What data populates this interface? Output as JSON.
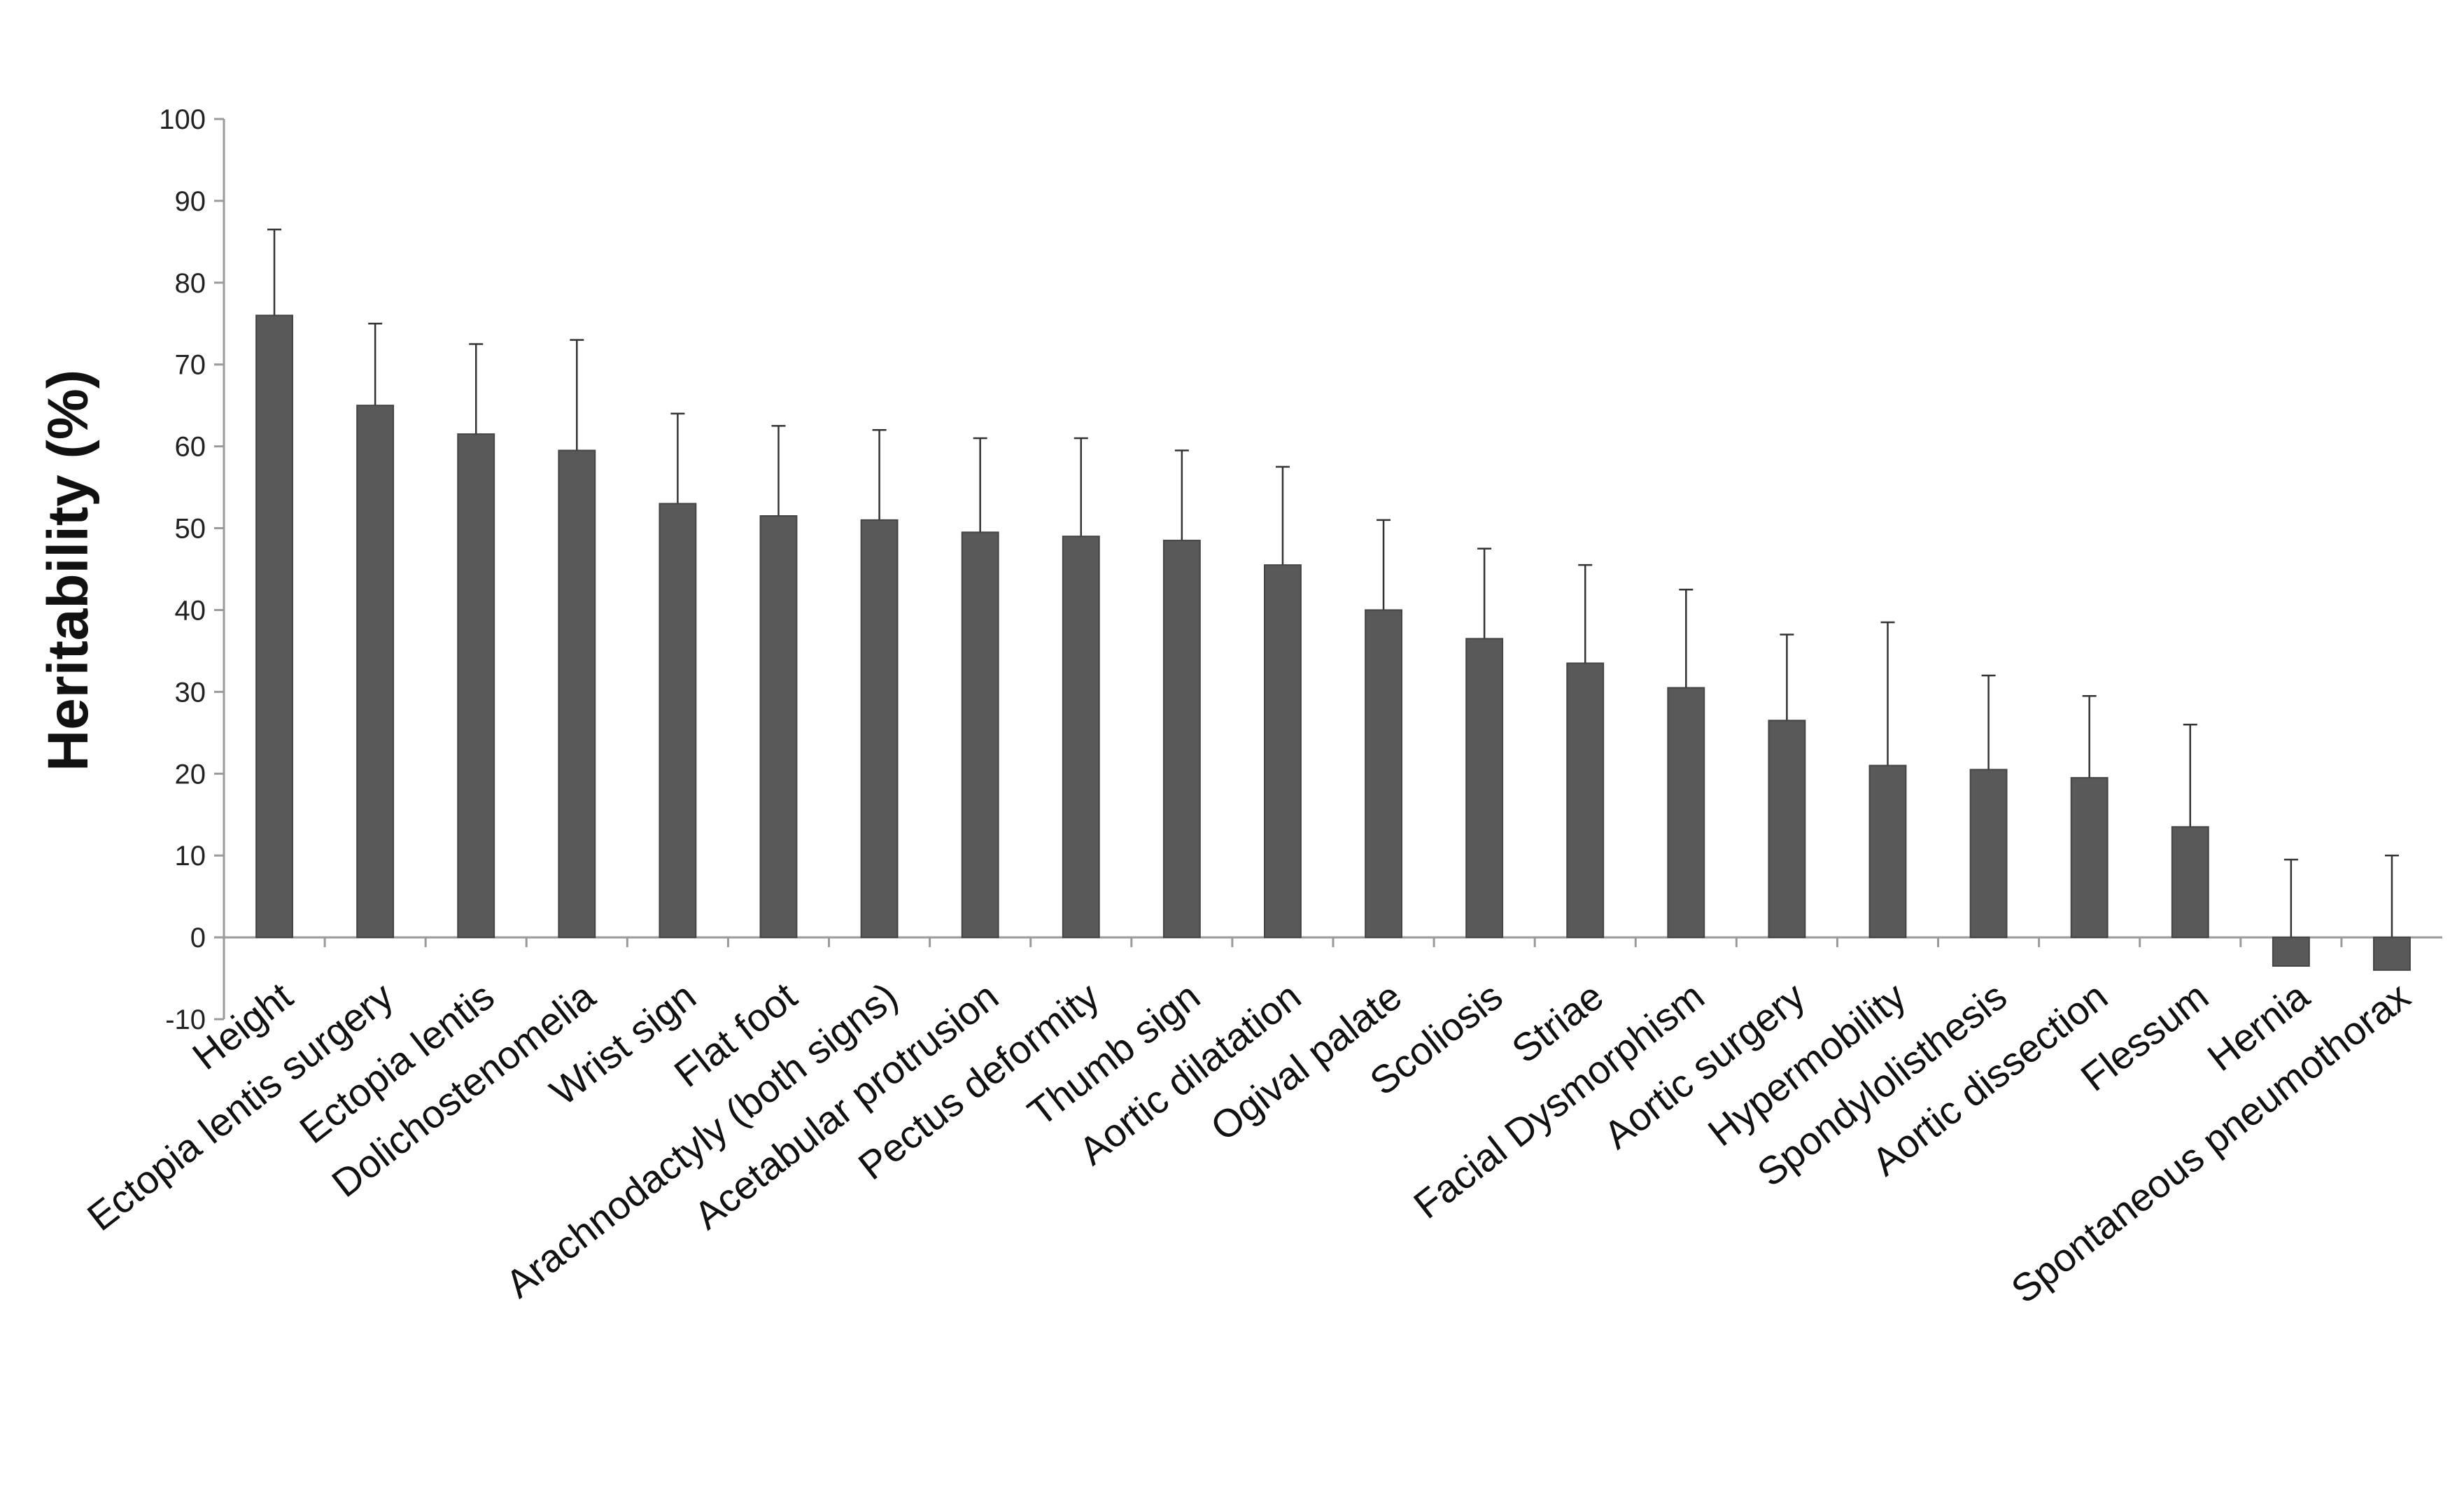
{
  "chart_data": {
    "type": "bar",
    "title": "",
    "xlabel": "",
    "ylabel": "Heritability (%)",
    "ylim": [
      -10,
      100
    ],
    "yticks": [
      -10,
      0,
      10,
      20,
      30,
      40,
      50,
      60,
      70,
      80,
      90,
      100
    ],
    "grid": false,
    "legend": "none",
    "bar_color": "#595959",
    "error_bars": "upper only",
    "categories": [
      "Height",
      "Ectopia lentis surgery",
      "Ectopia lentis",
      "Dolichostenomelia",
      "Wrist sign",
      "Flat foot",
      "Arachnodactyly (both signs)",
      "Acetabular protrusion",
      "Pectus deformity",
      "Thumb sign",
      "Aortic dilatation",
      "Ogival palate",
      "Scoliosis",
      "Striae",
      "Facial Dysmorphism",
      "Aortic surgery",
      "Hypermobility",
      "Spondylolisthesis",
      "Aortic dissection",
      "Flessum",
      "Hernia",
      "Spontaneous pneumothorax"
    ],
    "values": [
      76,
      65,
      61.5,
      59.5,
      53,
      51.5,
      51,
      49.5,
      49,
      48.5,
      45.5,
      40,
      36.5,
      33.5,
      30.5,
      26.5,
      21,
      20.5,
      19.5,
      13.5,
      -3.5,
      -4
    ],
    "error_upper": [
      86.5,
      75,
      72.5,
      73,
      64,
      62.5,
      62,
      61,
      61,
      59.5,
      57.5,
      51,
      47.5,
      45.5,
      42.5,
      37,
      38.5,
      32,
      29.5,
      26,
      9.5,
      10
    ]
  }
}
